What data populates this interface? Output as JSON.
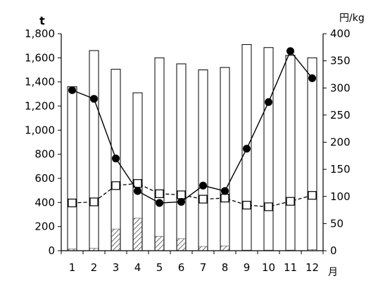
{
  "chart_data": {
    "type": "bar",
    "categories": [
      "1",
      "2",
      "3",
      "4",
      "5",
      "6",
      "7",
      "8",
      "9",
      "10",
      "11",
      "12"
    ],
    "xlabel": "月",
    "ylabel_left": "t",
    "ylabel_right": "円/kg",
    "ylim_left": [
      0,
      1800
    ],
    "ylim_right": [
      0,
      400
    ],
    "yticks_left": [
      "0",
      "200",
      "400",
      "600",
      "800",
      "1,000",
      "1,200",
      "1,400",
      "1,600",
      "1,800"
    ],
    "yticks_right": [
      "0",
      "50",
      "100",
      "150",
      "200",
      "250",
      "300",
      "350",
      "400"
    ],
    "grid": false,
    "series": [
      {
        "type": "bar-total",
        "axis": "left",
        "values": [
          1360,
          1660,
          1505,
          1310,
          1600,
          1550,
          1500,
          1520,
          1710,
          1685,
          1620,
          1600
        ]
      },
      {
        "type": "bar-hatched",
        "axis": "left",
        "values": [
          15,
          20,
          180,
          270,
          120,
          100,
          35,
          40,
          5,
          5,
          5,
          10
        ]
      },
      {
        "type": "line-solid-filled-circle",
        "axis": "right",
        "values": [
          296,
          280,
          170,
          110,
          88,
          90,
          120,
          110,
          188,
          274,
          368,
          318
        ]
      },
      {
        "type": "line-dashed-open-square",
        "axis": "right",
        "values": [
          88,
          90,
          120,
          124,
          105,
          103,
          95,
          97,
          84,
          81,
          91,
          102
        ]
      }
    ]
  }
}
